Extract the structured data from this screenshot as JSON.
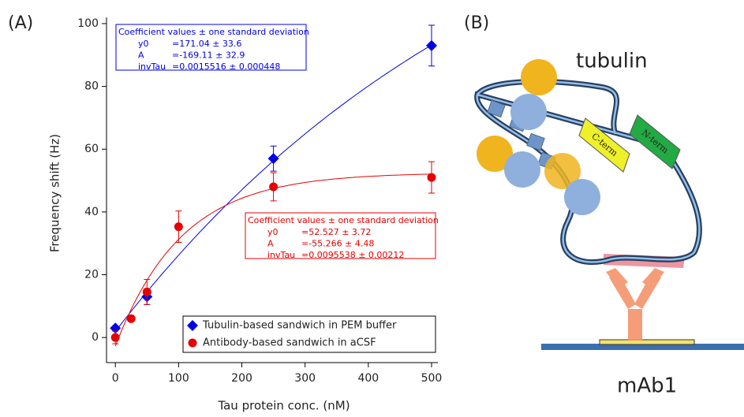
{
  "panel_label": "(A)",
  "chart_data": {
    "type": "scatter",
    "x_label": "Tau protein conc. (nM)",
    "y_label": "Frequency shift (Hz)",
    "xlim": [
      -14,
      510
    ],
    "ylim": [
      -8,
      102
    ],
    "xticks": [
      0,
      100,
      200,
      300,
      400,
      500
    ],
    "yticks": [
      0,
      20,
      40,
      60,
      80,
      100
    ],
    "grid": false,
    "legend": "lower right",
    "series": [
      {
        "name": "Tubulin-based sandwich in PEM buffer",
        "color": "#0000e6",
        "marker": "diamond",
        "x": [
          0,
          50,
          250,
          500
        ],
        "values": [
          3,
          13,
          57,
          93
        ],
        "errors": [
          0.5,
          2.5,
          4,
          6.5
        ],
        "fit": {
          "header": "Coefficient values ± one standard deviation",
          "names": [
            "y0",
            "A",
            "invTau"
          ],
          "values": [
            {
              "value": 171.04,
              "label": "=171.04 ± 33.6"
            },
            {
              "value": -169.11,
              "label": "=-169.11 ± 32.9"
            },
            {
              "value": 0.0015516,
              "label": "=0.0015516 ± 0.000448"
            }
          ]
        }
      },
      {
        "name": "Antibody-based sandwich in aCSF",
        "color": "#e60000",
        "marker": "circle",
        "x": [
          0,
          25,
          50,
          100,
          250,
          500
        ],
        "values": [
          0,
          6,
          14.5,
          35.3,
          48,
          51
        ],
        "errors": [
          2,
          0.5,
          4,
          5,
          4.5,
          5
        ],
        "fit": {
          "header": "Coefficient values ± one standard deviation",
          "names": [
            "y0",
            "A",
            "invTau"
          ],
          "values": [
            {
              "value": 52.527,
              "label": "=52.527 ± 3.72"
            },
            {
              "value": -55.266,
              "label": "=-55.266 ± 4.48"
            },
            {
              "value": 0.0095538,
              "label": "=0.0095538 ± 0.00212"
            }
          ]
        }
      }
    ]
  },
  "diagram": {
    "panel_label": "(B)",
    "title": "tubulin",
    "labels": [
      "C-term",
      "N-term"
    ],
    "antibody": "mAb1"
  }
}
